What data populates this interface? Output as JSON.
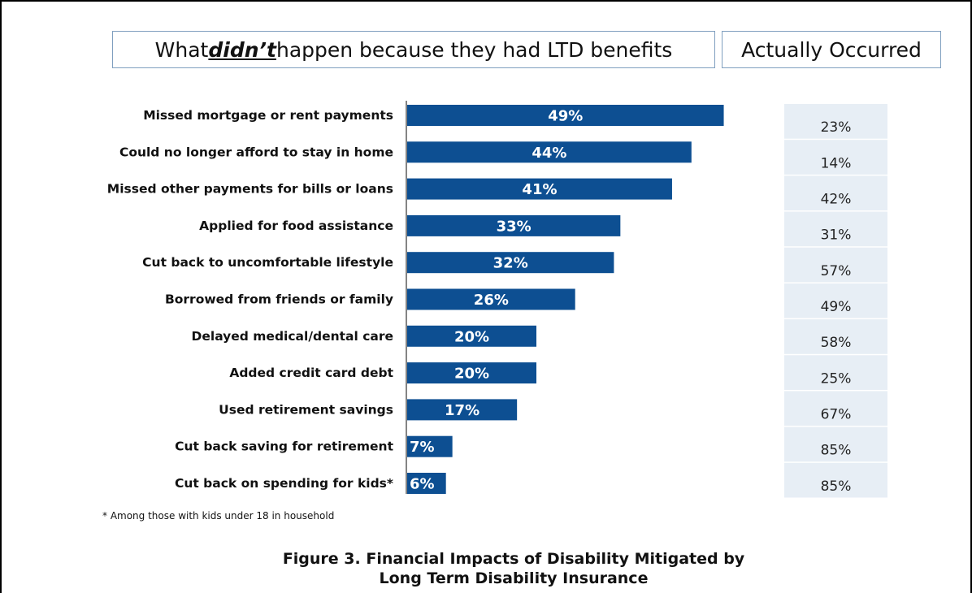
{
  "header": {
    "left_prefix": "What ",
    "left_emphasis": "didn’t",
    "left_suffix": " happen because they had LTD benefits",
    "right_label": "Actually Occurred"
  },
  "chart_data": {
    "type": "bar",
    "orientation": "horizontal",
    "categories": [
      "Missed mortgage or rent payments",
      "Could no longer afford to stay in home",
      "Missed other payments for bills or loans",
      "Applied for food assistance",
      "Cut back to uncomfortable lifestyle",
      "Borrowed from friends or family",
      "Delayed medical/dental care",
      "Added credit card debt",
      "Used retirement savings",
      "Cut back saving for retirement",
      "Cut back on spending for kids*"
    ],
    "series": [
      {
        "name": "What didn’t happen because they had LTD benefits",
        "values": [
          49,
          44,
          41,
          33,
          32,
          26,
          20,
          20,
          17,
          7,
          6
        ],
        "labels": [
          "49%",
          "44%",
          "41%",
          "33%",
          "32%",
          "26%",
          "20%",
          "20%",
          "17%",
          "7%",
          "6%"
        ],
        "color": "#0d4f92"
      },
      {
        "name": "Actually Occurred",
        "values": [
          23,
          14,
          42,
          31,
          57,
          49,
          58,
          25,
          67,
          85,
          85
        ],
        "labels": [
          "23%",
          "14%",
          "42%",
          "31%",
          "57%",
          "49%",
          "58%",
          "25%",
          "67%",
          "85%",
          "85%"
        ],
        "color": "#e7eef5"
      }
    ],
    "xlim": [
      0,
      100
    ]
  },
  "footnote": "* Among those with kids under 18 in household",
  "caption": {
    "line1": "Figure 3. Financial Impacts of Disability Mitigated by",
    "line2": "Long Term Disability Insurance"
  }
}
